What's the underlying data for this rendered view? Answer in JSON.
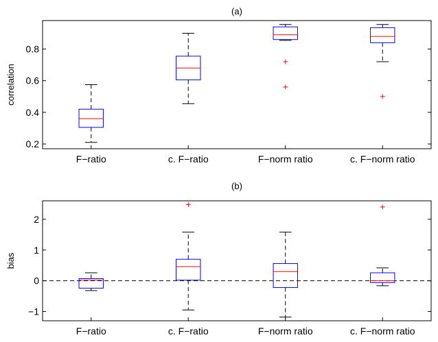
{
  "chart_data": [
    {
      "type": "box",
      "title": "(a)",
      "xlabel": "",
      "ylabel": "correlation",
      "ylim": [
        0.17,
        0.98
      ],
      "yticks": [
        0.2,
        0.4,
        0.6,
        0.8
      ],
      "ytick_labels": [
        "0.2",
        "0.4",
        "0.6",
        "0.8"
      ],
      "categories": [
        "F−ratio",
        "c. F−ratio",
        "F−norm ratio",
        "c. F−norm ratio"
      ],
      "boxes": [
        {
          "whisker_low": 0.21,
          "q1": 0.305,
          "median": 0.36,
          "q3": 0.42,
          "whisker_high": 0.575,
          "outliers": []
        },
        {
          "whisker_low": 0.455,
          "q1": 0.605,
          "median": 0.68,
          "q3": 0.755,
          "whisker_high": 0.9,
          "outliers": []
        },
        {
          "whisker_low": 0.855,
          "q1": 0.86,
          "median": 0.89,
          "q3": 0.94,
          "whisker_high": 0.955,
          "outliers": [
            0.72,
            0.56
          ]
        },
        {
          "whisker_low": 0.72,
          "q1": 0.84,
          "median": 0.88,
          "q3": 0.935,
          "whisker_high": 0.955,
          "outliers": [
            0.5
          ]
        }
      ],
      "grid": false,
      "reference_line": null
    },
    {
      "type": "box",
      "title": "(b)",
      "xlabel": "",
      "ylabel": "bias",
      "ylim": [
        -1.3,
        2.6
      ],
      "yticks": [
        -1,
        0,
        1,
        2
      ],
      "ytick_labels": [
        "−1",
        "0",
        "1",
        "2"
      ],
      "categories": [
        "F−ratio",
        "c. F−ratio",
        "F−norm ratio",
        "c. F−norm ratio"
      ],
      "boxes": [
        {
          "whisker_low": -0.32,
          "q1": -0.24,
          "median": 0.02,
          "q3": 0.07,
          "whisker_high": 0.26,
          "outliers": []
        },
        {
          "whisker_low": -0.95,
          "q1": 0.02,
          "median": 0.46,
          "q3": 0.7,
          "whisker_high": 1.58,
          "outliers": [
            2.48
          ]
        },
        {
          "whisker_low": -1.18,
          "q1": -0.22,
          "median": 0.3,
          "q3": 0.56,
          "whisker_high": 1.58,
          "outliers": []
        },
        {
          "whisker_low": -0.16,
          "q1": -0.06,
          "median": 0.0,
          "q3": 0.26,
          "whisker_high": 0.42,
          "outliers": [
            2.4
          ]
        }
      ],
      "grid": false,
      "reference_line": 0
    }
  ],
  "colors": {
    "box": "#0000ff",
    "median": "#ff0000",
    "whisker": "#000000",
    "outlier": "#ff0000",
    "axis": "#000000"
  }
}
